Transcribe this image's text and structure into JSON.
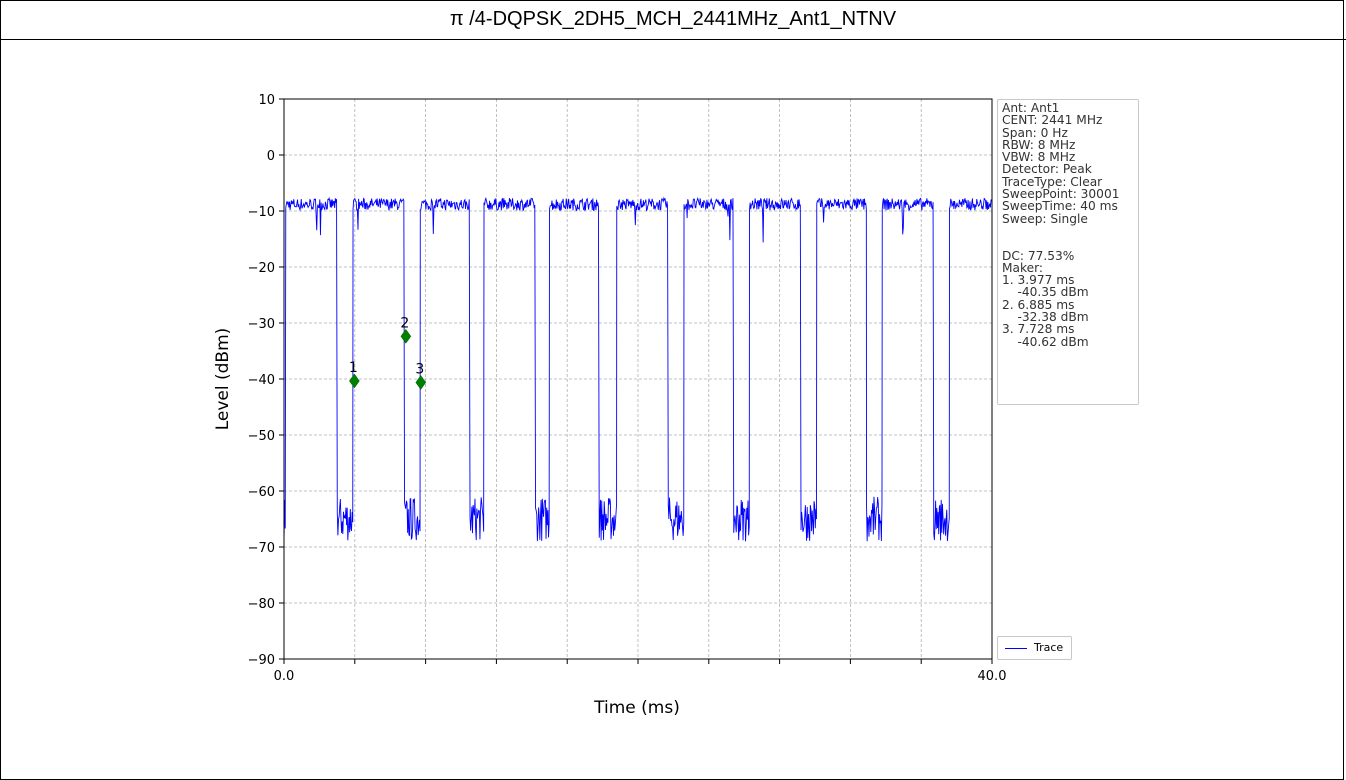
{
  "title": "π /4-DQPSK_2DH5_MCH_2441MHz_Ant1_NTNV",
  "chart_data": {
    "type": "line",
    "xlabel": "Time (ms)",
    "ylabel": "Level (dBm)",
    "xlim": [
      0,
      40
    ],
    "ylim": [
      -90,
      10
    ],
    "x_ticks": [
      "0.0",
      "40.0"
    ],
    "y_ticks": [
      10,
      0,
      -10,
      -20,
      -30,
      -40,
      -50,
      -60,
      -70,
      -80,
      -90
    ],
    "grid": true,
    "series": [
      {
        "name": "Trace",
        "color": "#0000ff",
        "high_level": -8.8,
        "low_level": -65,
        "on_intervals_ms": [
          [
            0.1,
            3.0
          ],
          [
            3.9,
            6.8
          ],
          [
            7.7,
            10.5
          ],
          [
            11.3,
            14.2
          ],
          [
            15.0,
            17.8
          ],
          [
            18.8,
            21.7
          ],
          [
            22.6,
            25.4
          ],
          [
            26.3,
            29.2
          ],
          [
            30.1,
            32.9
          ],
          [
            33.8,
            36.7
          ],
          [
            37.6,
            40.0
          ]
        ]
      }
    ],
    "markers": [
      {
        "label": "1",
        "x": 3.977,
        "y": -40.35
      },
      {
        "label": "2",
        "x": 6.885,
        "y": -32.38
      },
      {
        "label": "3",
        "x": 7.728,
        "y": -40.62
      }
    ],
    "legend_position": "bottom-right, outside plot",
    "info_lines": [
      "Ant: Ant1",
      "CENT: 2441 MHz",
      "Span: 0 Hz",
      "RBW: 8 MHz",
      "VBW: 8 MHz",
      "Detector: Peak",
      "TraceType: Clear",
      "SweepPoint: 30001",
      "SweepTime: 40 ms",
      "Sweep: Single",
      "",
      "",
      "DC: 77.53%",
      "Maker:",
      "1. 3.977 ms",
      "    -40.35 dBm",
      "2. 6.885 ms",
      "    -32.38 dBm",
      "3. 7.728 ms",
      "    -40.62 dBm"
    ]
  }
}
